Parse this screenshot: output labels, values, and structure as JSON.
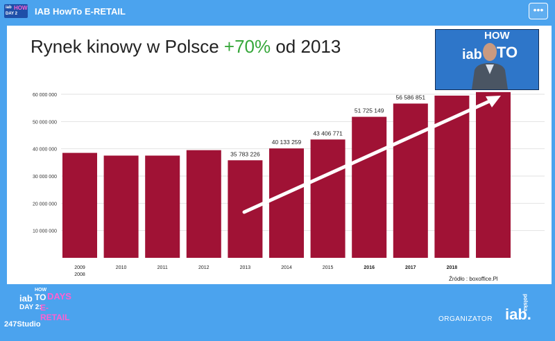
{
  "window": {
    "title": "IAB HowTo E-RETAIL",
    "menu_icon": "more-dots-icon",
    "menu_glyph": "•••"
  },
  "top_logo": {
    "line1": "iab",
    "line2": "HOW",
    "line3": "DAY 2"
  },
  "slide": {
    "title_prefix": "Rynek kinowy w Polsce ",
    "title_highlight": "+70%",
    "title_suffix": " od 2013",
    "highlight_color": "#37a73b",
    "source": "Źródło : boxoffice.Pl"
  },
  "chart_data": {
    "type": "bar",
    "categories": [
      "2009\n2008",
      "2010",
      "2011",
      "2012",
      "2013",
      "2014",
      "2015",
      "2016",
      "2017",
      "2018",
      ""
    ],
    "bold_categories": [
      "2016",
      "2017",
      "2018"
    ],
    "values": [
      38500000,
      37500000,
      37500000,
      39500000,
      35783226,
      40133259,
      43406771,
      51725149,
      56586851,
      59500000,
      60800000
    ],
    "data_labels": [
      "",
      "",
      "",
      "",
      "35 783 226",
      "40 133 259",
      "43 406 771",
      "51 725 149",
      "56 586 851",
      "",
      ""
    ],
    "yticks": [
      "10 000 000",
      "20 000 000",
      "30 000 000",
      "40 000 000",
      "50 000 000",
      "60 000 000"
    ],
    "ylim": [
      0,
      60000000
    ],
    "bar_color": "#a01235",
    "trend_arrow": true
  },
  "camera": {
    "brand_text_1": "iab",
    "brand_text_2": "HOW",
    "brand_text_3": "TO"
  },
  "footer": {
    "logo_iab": "iab",
    "logo_how": "HOW",
    "logo_to": "TO",
    "logo_days": "DAYS",
    "logo_day2": "DAY 2:",
    "logo_eretail": "E-RETAIL",
    "studio": "247Studio",
    "organizer_label": "ORGANIZATOR",
    "organizer_logo": "iab.",
    "organizer_sub": "polska"
  }
}
